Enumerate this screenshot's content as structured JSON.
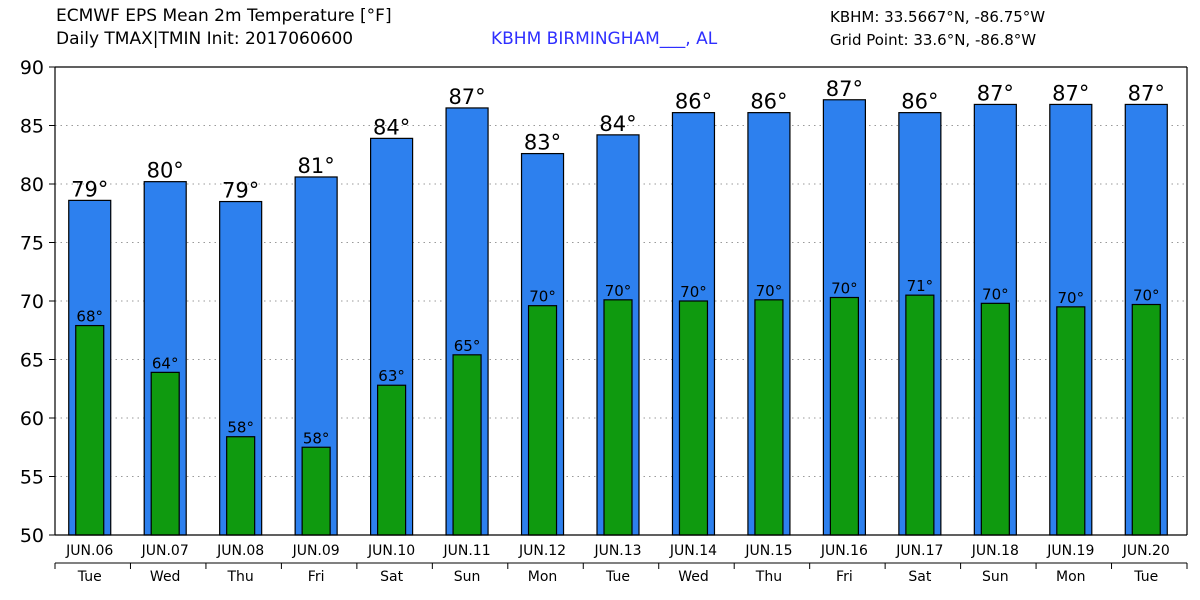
{
  "header": {
    "title_line1": "ECMWF EPS Mean 2m Temperature [°F]",
    "title_line2": "Daily TMAX|TMIN Init: 2017060600",
    "station": "KBHM BIRMINGHAM___, AL",
    "coords_line1": "KBHM: 33.5667°N, -86.75°W",
    "coords_line2": "Grid Point: 33.6°N, -86.8°W"
  },
  "colors": {
    "tmax": "#2d80ee",
    "tmin": "#0f9a0f",
    "station_text": "#2f2fff"
  },
  "chart_data": {
    "type": "bar",
    "title": "ECMWF EPS Mean 2m Temperature [°F]",
    "categories": [
      "JUN.06",
      "JUN.07",
      "JUN.08",
      "JUN.09",
      "JUN.10",
      "JUN.11",
      "JUN.12",
      "JUN.13",
      "JUN.14",
      "JUN.15",
      "JUN.16",
      "JUN.17",
      "JUN.18",
      "JUN.19",
      "JUN.20"
    ],
    "weekdays": [
      "Tue",
      "Wed",
      "Thu",
      "Fri",
      "Sat",
      "Sun",
      "Mon",
      "Tue",
      "Wed",
      "Thu",
      "Fri",
      "Sat",
      "Sun",
      "Mon",
      "Tue"
    ],
    "series": [
      {
        "values": [
          78.6,
          80.2,
          78.5,
          80.6,
          83.9,
          86.5,
          82.6,
          84.2,
          86.1,
          86.1,
          87.2,
          86.1,
          86.8,
          86.8,
          86.8
        ],
        "labels": [
          "79°",
          "80°",
          "79°",
          "81°",
          "84°",
          "87°",
          "83°",
          "84°",
          "86°",
          "86°",
          "87°",
          "86°",
          "87°",
          "87°",
          "87°"
        ]
      },
      {
        "values": [
          67.9,
          63.9,
          58.4,
          57.5,
          62.8,
          65.4,
          69.6,
          70.1,
          70.0,
          70.1,
          70.3,
          70.5,
          69.8,
          69.5,
          69.7
        ],
        "labels": [
          "68°",
          "64°",
          "58°",
          "58°",
          "63°",
          "65°",
          "70°",
          "70°",
          "70°",
          "70°",
          "70°",
          "71°",
          "70°",
          "70°",
          "70°"
        ]
      }
    ],
    "ylim": [
      50,
      90
    ],
    "yticks": [
      "50",
      "55",
      "60",
      "65",
      "70",
      "75",
      "80",
      "85",
      "90"
    ],
    "grid": true
  }
}
